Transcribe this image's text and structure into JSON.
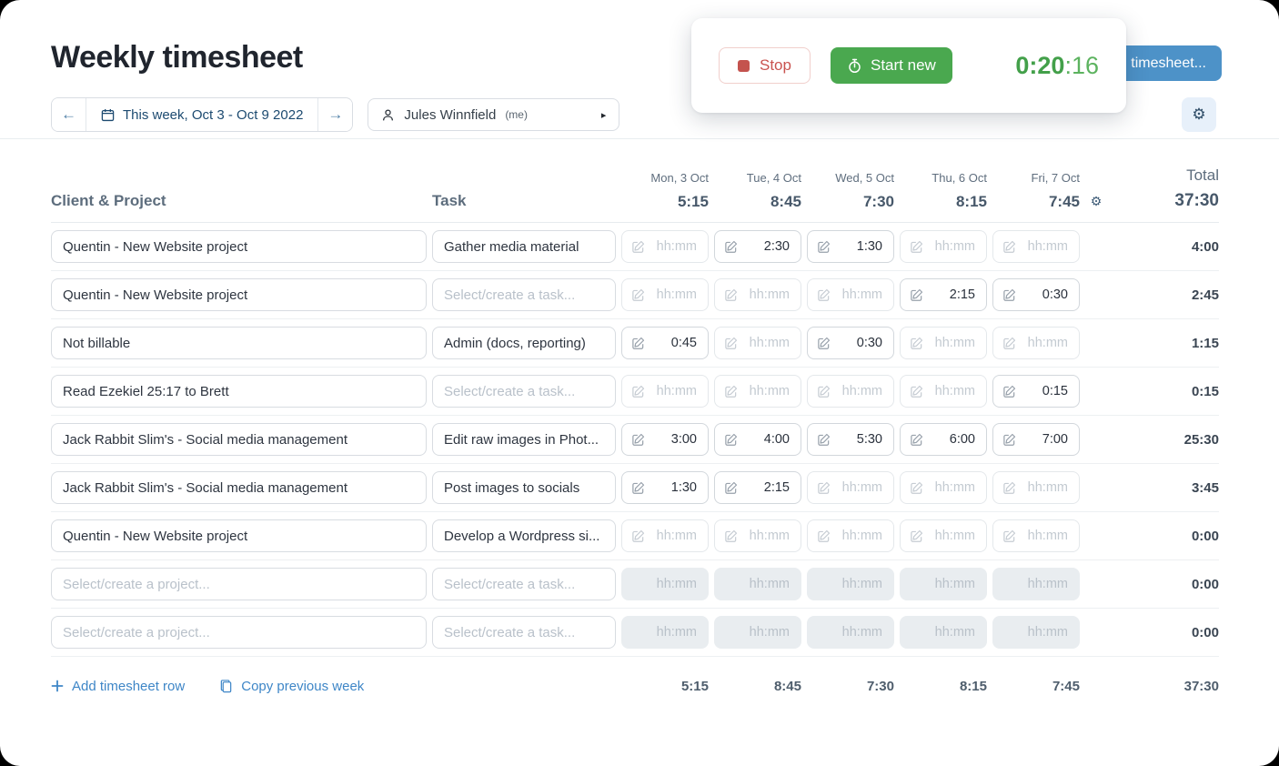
{
  "app": {
    "title": "Weekly timesheet",
    "week_nav": {
      "current": "This week, Oct 3 - Oct 9 2022"
    },
    "user_select": {
      "name": "Jules Winnfield",
      "suffix": "(me)"
    },
    "timer": {
      "stop": "Stop",
      "start_new": "Start new",
      "elapsed_main": "0:20",
      "elapsed_seconds": ":16"
    },
    "save_button": "timesheet...",
    "gear_glyph": "⚙",
    "caret_glyph": "▸",
    "arrow_left": "←",
    "arrow_right": "→",
    "colors": {
      "accent_blue": "#4d92c8",
      "green": "#4aa84f",
      "red": "#c9534f",
      "link_blue": "#3e86c7"
    }
  },
  "table": {
    "headers": {
      "client_project": "Client & Project",
      "task": "Task",
      "total": "Total"
    },
    "days": [
      {
        "label": "Mon, 3 Oct",
        "total": "5:15"
      },
      {
        "label": "Tue, 4 Oct",
        "total": "8:45"
      },
      {
        "label": "Wed, 5 Oct",
        "total": "7:30"
      },
      {
        "label": "Thu, 6 Oct",
        "total": "8:15"
      },
      {
        "label": "Fri, 7 Oct",
        "total": "7:45"
      }
    ],
    "week_total": "37:30",
    "placeholders": {
      "project": "Select/create a project...",
      "task": "Select/create a task...",
      "time": "hh:mm"
    },
    "rows": [
      {
        "project": "Quentin - New Website project",
        "task": "Gather media material",
        "times": [
          null,
          "2:30",
          "1:30",
          null,
          null
        ],
        "total": "4:00",
        "disabled": false
      },
      {
        "project": "Quentin - New Website project",
        "task": null,
        "times": [
          null,
          null,
          null,
          "2:15",
          "0:30"
        ],
        "total": "2:45",
        "disabled": false
      },
      {
        "project": "Not billable",
        "task": "Admin (docs, reporting)",
        "times": [
          "0:45",
          null,
          "0:30",
          null,
          null
        ],
        "total": "1:15",
        "disabled": false
      },
      {
        "project": "Read Ezekiel 25:17 to Brett",
        "task": null,
        "times": [
          null,
          null,
          null,
          null,
          "0:15"
        ],
        "total": "0:15",
        "disabled": false
      },
      {
        "project": "Jack Rabbit Slim's - Social media management",
        "task": "Edit raw images in Phot...",
        "times": [
          "3:00",
          "4:00",
          "5:30",
          "6:00",
          "7:00"
        ],
        "total": "25:30",
        "disabled": false
      },
      {
        "project": "Jack Rabbit Slim's - Social media management",
        "task": "Post images to socials",
        "times": [
          "1:30",
          "2:15",
          null,
          null,
          null
        ],
        "total": "3:45",
        "disabled": false
      },
      {
        "project": "Quentin - New Website project",
        "task": "Develop a Wordpress si...",
        "times": [
          null,
          null,
          null,
          null,
          null
        ],
        "total": "0:00",
        "disabled": false
      },
      {
        "project": null,
        "task": null,
        "times": [
          null,
          null,
          null,
          null,
          null
        ],
        "total": "0:00",
        "disabled": true
      },
      {
        "project": null,
        "task": null,
        "times": [
          null,
          null,
          null,
          null,
          null
        ],
        "total": "0:00",
        "disabled": true
      }
    ],
    "footer": {
      "add_row": "Add timesheet row",
      "copy_week": "Copy previous week",
      "day_totals": [
        "5:15",
        "8:45",
        "7:30",
        "8:15",
        "7:45"
      ],
      "week_total": "37:30"
    }
  }
}
